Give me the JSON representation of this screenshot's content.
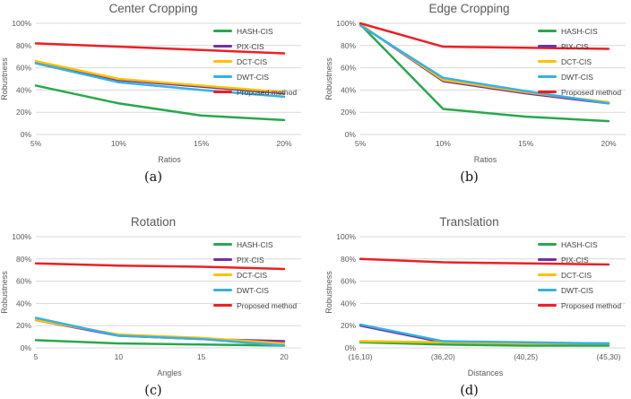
{
  "figure": {
    "background": "#ffffff",
    "grid_color": "#d9d9d9",
    "title_color": "#595959",
    "tick_color": "#595959",
    "legend_text_color": "#3f3f3f",
    "caption_color": "#111111"
  },
  "chart_data": [
    {
      "type": "line",
      "title": "Center Cropping",
      "caption": "(a)",
      "xlabel": "Ratios",
      "ylabel": "Robustness",
      "ylim": [
        0,
        100
      ],
      "y_ticks": [
        "0%",
        "20%",
        "40%",
        "60%",
        "80%",
        "100%"
      ],
      "grid": true,
      "legend_position": "right-inside",
      "categories": [
        "5%",
        "10%",
        "15%",
        "20%"
      ],
      "series": [
        {
          "name": "HASH-CIS",
          "color": "#28a84c",
          "values": [
            44,
            28,
            17,
            13
          ]
        },
        {
          "name": "PIX-CIS",
          "color": "#7030a0",
          "values": [
            65,
            49,
            43,
            37
          ]
        },
        {
          "name": "DCT-CIS",
          "color": "#ffc000",
          "values": [
            66,
            50,
            44,
            38
          ]
        },
        {
          "name": "DWT-CIS",
          "color": "#35b1e8",
          "values": [
            64,
            47,
            40,
            34
          ]
        },
        {
          "name": "Proposed method",
          "color": "#ec2024",
          "values": [
            82,
            79,
            76,
            73
          ]
        }
      ]
    },
    {
      "type": "line",
      "title": "Edge Cropping",
      "caption": "(b)",
      "xlabel": "Ratios",
      "ylabel": "Robustness",
      "ylim": [
        0,
        100
      ],
      "y_ticks": [
        "0%",
        "20%",
        "40%",
        "60%",
        "80%",
        "100%"
      ],
      "grid": true,
      "legend_position": "right-inside",
      "categories": [
        "5%",
        "10%",
        "15%",
        "20%"
      ],
      "series": [
        {
          "name": "HASH-CIS",
          "color": "#28a84c",
          "values": [
            99,
            23,
            16,
            12
          ]
        },
        {
          "name": "PIX-CIS",
          "color": "#7030a0",
          "values": [
            99,
            48,
            37,
            28
          ]
        },
        {
          "name": "DCT-CIS",
          "color": "#ffc000",
          "values": [
            99,
            49,
            38,
            29
          ]
        },
        {
          "name": "DWT-CIS",
          "color": "#35b1e8",
          "values": [
            98,
            51,
            39,
            28
          ]
        },
        {
          "name": "Proposed method",
          "color": "#ec2024",
          "values": [
            100,
            79,
            78,
            77
          ]
        }
      ]
    },
    {
      "type": "line",
      "title": "Rotation",
      "caption": "(c)",
      "xlabel": "Angles",
      "ylabel": "Robustness",
      "ylim": [
        0,
        100
      ],
      "y_ticks": [
        "0%",
        "20%",
        "40%",
        "60%",
        "80%",
        "100%"
      ],
      "grid": true,
      "legend_position": "right-inside",
      "categories": [
        "5",
        "10",
        "15",
        "20"
      ],
      "series": [
        {
          "name": "HASH-CIS",
          "color": "#28a84c",
          "values": [
            7,
            4,
            3,
            2
          ]
        },
        {
          "name": "PIX-CIS",
          "color": "#7030a0",
          "values": [
            25,
            11,
            8,
            6
          ]
        },
        {
          "name": "DCT-CIS",
          "color": "#ffc000",
          "values": [
            25,
            12,
            9,
            4
          ]
        },
        {
          "name": "DWT-CIS",
          "color": "#35b1e8",
          "values": [
            27,
            11,
            8,
            2
          ]
        },
        {
          "name": "Proposed method",
          "color": "#ec2024",
          "values": [
            76,
            74,
            73,
            71
          ]
        }
      ]
    },
    {
      "type": "line",
      "title": "Translation",
      "caption": "(d)",
      "xlabel": "Distances",
      "ylabel": "Robustness",
      "ylim": [
        0,
        100
      ],
      "y_ticks": [
        "0%",
        "20%",
        "40%",
        "60%",
        "80%",
        "100%"
      ],
      "grid": true,
      "legend_position": "right-inside",
      "categories": [
        "(16,10)",
        "(36,20)",
        "(40,25)",
        "(45,30)"
      ],
      "series": [
        {
          "name": "HASH-CIS",
          "color": "#28a84c",
          "values": [
            5,
            3,
            2,
            2
          ]
        },
        {
          "name": "PIX-CIS",
          "color": "#7030a0",
          "values": [
            20,
            5,
            4,
            4
          ]
        },
        {
          "name": "DCT-CIS",
          "color": "#ffc000",
          "values": [
            6,
            5,
            4,
            4
          ]
        },
        {
          "name": "DWT-CIS",
          "color": "#35b1e8",
          "values": [
            21,
            6,
            5,
            4
          ]
        },
        {
          "name": "Proposed method",
          "color": "#ec2024",
          "values": [
            80,
            77,
            76,
            75
          ]
        }
      ]
    }
  ]
}
